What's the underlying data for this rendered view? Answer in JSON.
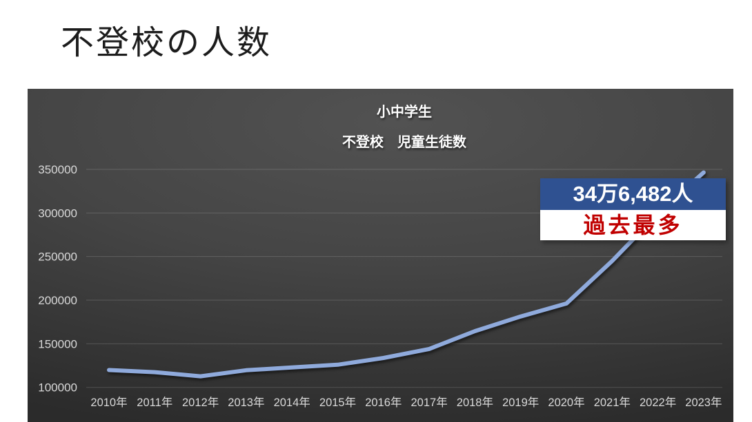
{
  "page": {
    "title": "不登校の人数"
  },
  "chart": {
    "title_lines": [
      "小中学生",
      "不登校　児童生徒数"
    ],
    "annotation": {
      "value": "34万6,482人",
      "note": "過去最多"
    },
    "colors": {
      "line": "#8faadc",
      "annotation_bg": "#2f5191",
      "note_text": "#c00000",
      "axis_text": "#d9d9d9",
      "plot_bg": "#454545"
    }
  },
  "chart_data": {
    "type": "line",
    "title": "小中学生 不登校 児童生徒数",
    "categories": [
      "2010年",
      "2011年",
      "2012年",
      "2013年",
      "2014年",
      "2015年",
      "2016年",
      "2017年",
      "2018年",
      "2019年",
      "2020年",
      "2021年",
      "2022年",
      "2023年"
    ],
    "values": [
      119891,
      117458,
      112689,
      119617,
      122897,
      125991,
      133683,
      144031,
      164528,
      181272,
      196127,
      244940,
      299048,
      346482
    ],
    "xlabel": "",
    "ylabel": "",
    "ylim": [
      100000,
      350000
    ],
    "yticks": [
      100000,
      150000,
      200000,
      250000,
      300000,
      350000
    ],
    "grid": true,
    "legend": "none",
    "annotation_points_to": "2023年"
  }
}
